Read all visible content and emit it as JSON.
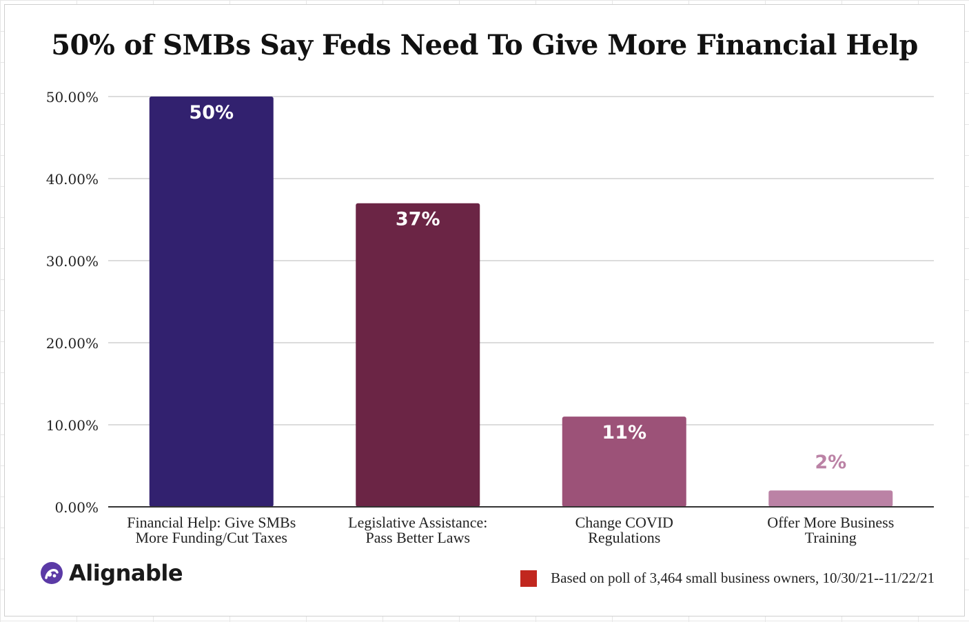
{
  "title": "50% of SMBs Say Feds Need To Give More Financial Help",
  "chart_data": {
    "type": "bar",
    "title": "50% of SMBs Say Feds Need To Give More Financial Help",
    "categories": [
      [
        "Financial Help: Give SMBs",
        "More Funding/Cut Taxes"
      ],
      [
        "Legislative Assistance:",
        "Pass Better Laws"
      ],
      [
        "Change COVID",
        "Regulations"
      ],
      [
        "Offer More Business",
        "Training"
      ]
    ],
    "values": [
      50,
      37,
      11,
      2
    ],
    "data_labels": [
      "50%",
      "37%",
      "11%",
      "2%"
    ],
    "bar_colors": [
      "#32216f",
      "#6b2545",
      "#9c5278",
      "#bb82a5"
    ],
    "data_label_colors": [
      "#ffffff",
      "#ffffff",
      "#ffffff",
      "#bb82a5"
    ],
    "ylim": [
      0,
      50
    ],
    "y_ticks": [
      "0.00%",
      "10.00%",
      "20.00%",
      "30.00%",
      "40.00%",
      "50.00%"
    ],
    "y_tick_values": [
      0,
      10,
      20,
      30,
      40,
      50
    ],
    "grid": true,
    "xlabel": "",
    "ylabel": ""
  },
  "logo": {
    "text": "Alignable",
    "color": "#5b3aa6"
  },
  "footnote": {
    "text": "Based on poll of 3,464 small business owners, 10/30/21--11/22/21",
    "swatch_color": "#c1271f"
  }
}
